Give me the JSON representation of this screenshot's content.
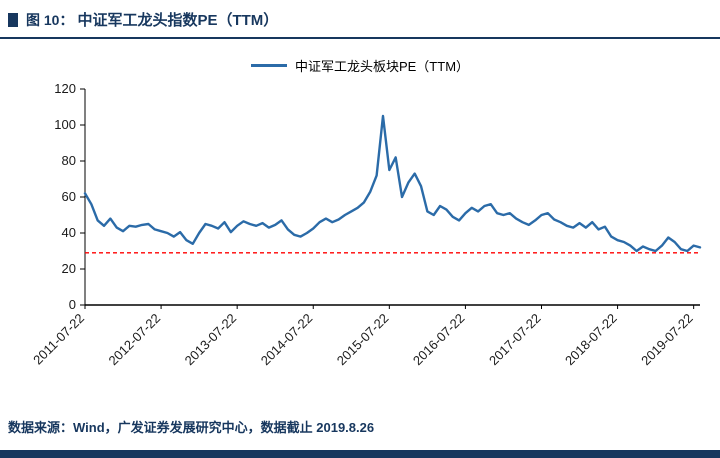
{
  "header": {
    "prefix": "图 10：",
    "title": "中证军工龙头指数PE（TTM）"
  },
  "legend": {
    "series_label": "中证军工龙头板块PE（TTM）"
  },
  "footer": {
    "source_text": "数据来源：Wind，广发证券发展研究中心，数据截止 2019.8.26"
  },
  "colors": {
    "accent_navy": "#17375e",
    "series_line": "#2b6ba8",
    "reference_red": "#ff0000",
    "axis": "#000000"
  },
  "chart_data": {
    "type": "line",
    "title": "中证军工龙头指数PE（TTM）",
    "legend_position": "top",
    "grid": false,
    "ylim": [
      0,
      120
    ],
    "yticks": [
      0,
      20,
      40,
      60,
      80,
      100,
      120
    ],
    "x_tick_labels": [
      "2011-07-22",
      "2012-07-22",
      "2013-07-22",
      "2014-07-22",
      "2015-07-22",
      "2016-07-22",
      "2017-07-22",
      "2018-07-22",
      "2019-07-22"
    ],
    "x_tick_indices": [
      0,
      12,
      24,
      36,
      48,
      60,
      72,
      84,
      96
    ],
    "x_unit": "monthly samples starting 2011-07",
    "series": [
      {
        "name": "中证军工龙头板块PE（TTM）",
        "color": "#2b6ba8",
        "values": [
          62,
          56,
          47,
          44,
          48,
          43,
          41,
          44,
          43.5,
          44.5,
          45,
          42,
          41,
          40,
          38,
          40.5,
          36,
          34,
          40,
          45,
          44,
          42.5,
          46,
          40.5,
          44,
          46.5,
          45,
          44,
          45.5,
          43,
          44.5,
          47,
          42,
          39,
          38,
          40,
          42.5,
          46,
          48,
          46,
          47.5,
          50,
          52,
          54,
          57,
          63,
          72,
          105,
          75,
          82,
          60,
          68,
          73,
          66,
          52,
          50,
          55,
          53,
          49,
          47,
          51,
          54,
          52,
          55,
          56,
          51,
          50,
          51,
          48,
          46,
          44.5,
          47,
          50,
          51,
          47.5,
          46,
          44,
          43,
          45.5,
          43,
          46,
          42,
          43.5,
          38,
          36,
          35,
          33,
          30,
          32.5,
          31,
          30,
          33,
          37.5,
          35,
          31,
          30,
          33,
          32
        ]
      }
    ],
    "reference_line": {
      "value": 29,
      "color": "#ff0000",
      "style": "dashed"
    }
  }
}
